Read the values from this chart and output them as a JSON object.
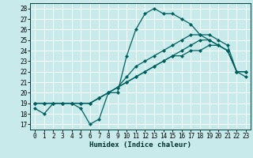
{
  "title": "",
  "xlabel": "Humidex (Indice chaleur)",
  "background_color": "#c8eaea",
  "grid_color": "#ffffff",
  "line_color": "#006060",
  "xlim": [
    -0.5,
    23.5
  ],
  "ylim": [
    16.5,
    28.5
  ],
  "xticks": [
    0,
    1,
    2,
    3,
    4,
    5,
    6,
    7,
    8,
    9,
    10,
    11,
    12,
    13,
    14,
    15,
    16,
    17,
    18,
    19,
    20,
    21,
    22,
    23
  ],
  "yticks": [
    17,
    18,
    19,
    20,
    21,
    22,
    23,
    24,
    25,
    26,
    27,
    28
  ],
  "series": [
    [
      18.5,
      18.0,
      19.0,
      19.0,
      19.0,
      18.5,
      17.0,
      17.5,
      20.0,
      20.0,
      23.5,
      26.0,
      27.5,
      28.0,
      27.5,
      27.5,
      27.0,
      26.5,
      25.5,
      25.0,
      24.5,
      24.0,
      22.0,
      22.0
    ],
    [
      19.0,
      19.0,
      19.0,
      19.0,
      19.0,
      19.0,
      19.0,
      19.5,
      20.0,
      20.5,
      21.0,
      21.5,
      22.0,
      22.5,
      23.0,
      23.5,
      23.5,
      24.0,
      24.0,
      24.5,
      24.5,
      24.0,
      22.0,
      22.0
    ],
    [
      19.0,
      19.0,
      19.0,
      19.0,
      19.0,
      19.0,
      19.0,
      19.5,
      20.0,
      20.5,
      21.0,
      21.5,
      22.0,
      22.5,
      23.0,
      23.5,
      24.0,
      24.5,
      25.0,
      25.0,
      24.5,
      24.0,
      22.0,
      21.5
    ],
    [
      19.0,
      19.0,
      19.0,
      19.0,
      19.0,
      19.0,
      19.0,
      19.5,
      20.0,
      20.5,
      21.5,
      22.5,
      23.0,
      23.5,
      24.0,
      24.5,
      25.0,
      25.5,
      25.5,
      25.5,
      25.0,
      24.5,
      22.0,
      22.0
    ]
  ],
  "marker": "D",
  "marker_size": 2.0,
  "line_width": 0.9,
  "tick_fontsize": 5.5,
  "xlabel_fontsize": 6.5
}
